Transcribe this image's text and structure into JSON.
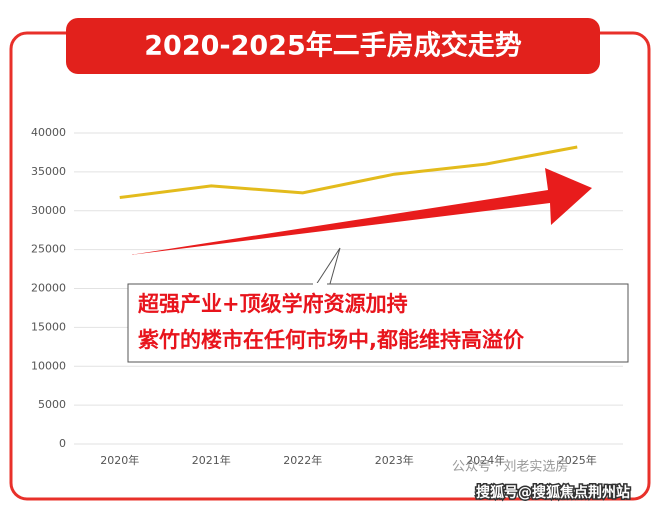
{
  "chart_data": {
    "type": "line",
    "title": "2020-2025年二手房成交走势",
    "categories": [
      "2020年",
      "2021年",
      "2022年",
      "2023年",
      "2024年",
      "2025年"
    ],
    "series": [
      {
        "color": "#e3bb1c",
        "values": [
          31700,
          33200,
          32300,
          34700,
          36000,
          38200
        ]
      }
    ],
    "ylim": [
      0,
      40000
    ],
    "yticks": [
      0,
      5000,
      10000,
      15000,
      20000,
      25000,
      30000,
      35000,
      40000
    ],
    "grid": true,
    "annotation": [
      "超强产业+顶级学府资源加持",
      "紫竹的楼市在任何市场中,都能维持高溢价"
    ],
    "watermarks": [
      "公众号 · 刘老实选房",
      "搜狐号@搜狐焦点荆州站"
    ]
  }
}
